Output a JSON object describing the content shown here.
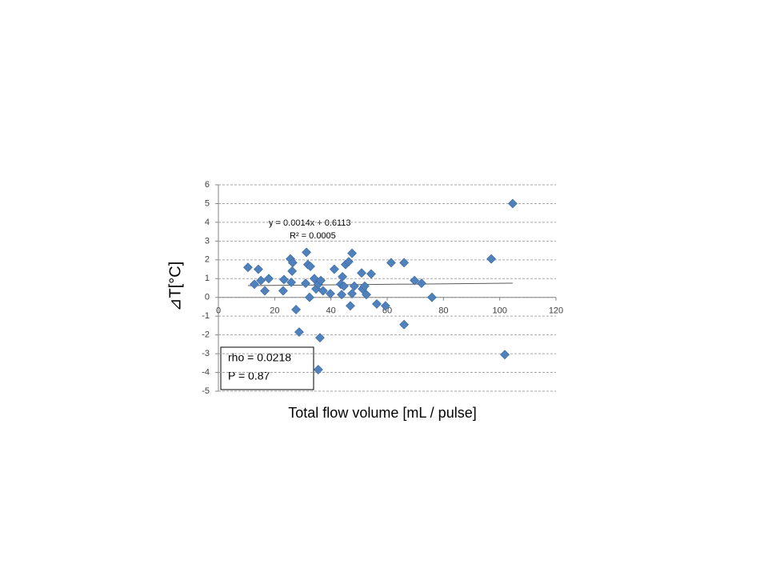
{
  "chart_data": {
    "type": "scatter",
    "x_label": "Total flow volume [mL / pulse]",
    "y_label": "⊿T[°C]",
    "series": [
      {
        "color": "#4f81bd",
        "x": [
          10.5,
          12.8,
          14.2,
          15.1,
          16.5,
          17.9,
          23.3,
          23.0,
          25.6,
          26.4,
          26.2,
          25.9,
          27.6,
          28.7,
          31.0,
          31.3,
          31.8,
          32.7,
          32.4,
          34.1,
          34.7,
          35.5,
          36.4,
          35.5,
          36.1,
          37.2,
          39.8,
          41.2,
          44.1,
          43.5,
          43.8,
          44.6,
          45.2,
          46.3,
          46.9,
          47.5,
          47.5,
          48.3,
          50.9,
          51.2,
          52.0,
          52.6,
          54.3,
          56.3,
          59.4,
          61.4,
          66.0,
          66.0,
          69.7,
          72.2,
          75.9,
          97.0,
          101.8,
          104.6
        ],
        "values": [
          1.6,
          0.7,
          1.5,
          0.9,
          0.35,
          1.0,
          0.95,
          0.35,
          2.05,
          1.85,
          1.4,
          0.8,
          -0.65,
          -1.85,
          0.75,
          2.4,
          1.75,
          1.65,
          0.0,
          1.0,
          0.45,
          0.7,
          0.9,
          -3.85,
          -2.15,
          0.35,
          0.2,
          1.5,
          1.1,
          0.7,
          0.15,
          0.6,
          1.75,
          1.9,
          -0.45,
          2.35,
          0.2,
          0.6,
          1.3,
          0.45,
          0.6,
          0.15,
          1.25,
          -0.35,
          -0.45,
          1.85,
          1.85,
          -1.45,
          0.9,
          0.75,
          0.0,
          2.05,
          -3.05,
          5.0
        ]
      }
    ],
    "trendline": {
      "equation": "y = 0.0014x + 0.6113",
      "r_squared": "R² = 0.0005",
      "slope": 0.0014,
      "intercept": 0.6113,
      "color": "#595959"
    },
    "annotations": [
      "rho = 0.0218",
      "P = 0.87"
    ],
    "xlim": [
      0,
      120
    ],
    "xticks": [
      0,
      20,
      40,
      60,
      80,
      100,
      120
    ],
    "ylim": [
      -5,
      6
    ],
    "yticks": [
      -5,
      -4,
      -3,
      -2,
      -1,
      0,
      1,
      2,
      3,
      4,
      5,
      6
    ],
    "grid": true
  }
}
